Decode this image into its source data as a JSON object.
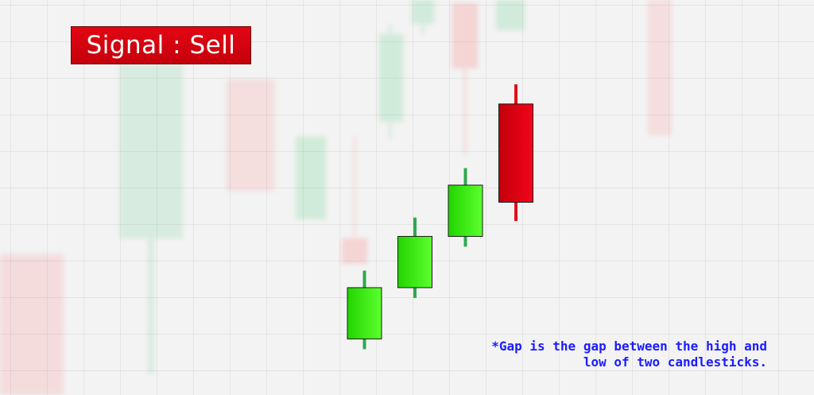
{
  "chart_data": {
    "type": "candlestick",
    "title": "Signal : Sell",
    "candles": [
      {
        "open": 3.4,
        "close": 9.4,
        "high": 11.4,
        "low": 2.2,
        "direction": "bullish"
      },
      {
        "open": 9.4,
        "close": 15.4,
        "high": 17.6,
        "low": 8.2,
        "direction": "bullish"
      },
      {
        "open": 15.4,
        "close": 21.4,
        "high": 23.4,
        "low": 14.2,
        "direction": "bullish"
      },
      {
        "open": 30.9,
        "close": 19.4,
        "high": 33.2,
        "low": 17.2,
        "direction": "bearish"
      }
    ],
    "annotation": {
      "line1": "*Gap is the gap between the high and",
      "line2": "low of two candlesticks."
    },
    "grid": true,
    "colors": {
      "bullish": "#33e000",
      "bullish_wick": "#2fa84f",
      "bearish": "#e00010",
      "bearish_wick": "#e0101a",
      "badge": "#d50412",
      "note_text": "#1c1cff"
    }
  }
}
